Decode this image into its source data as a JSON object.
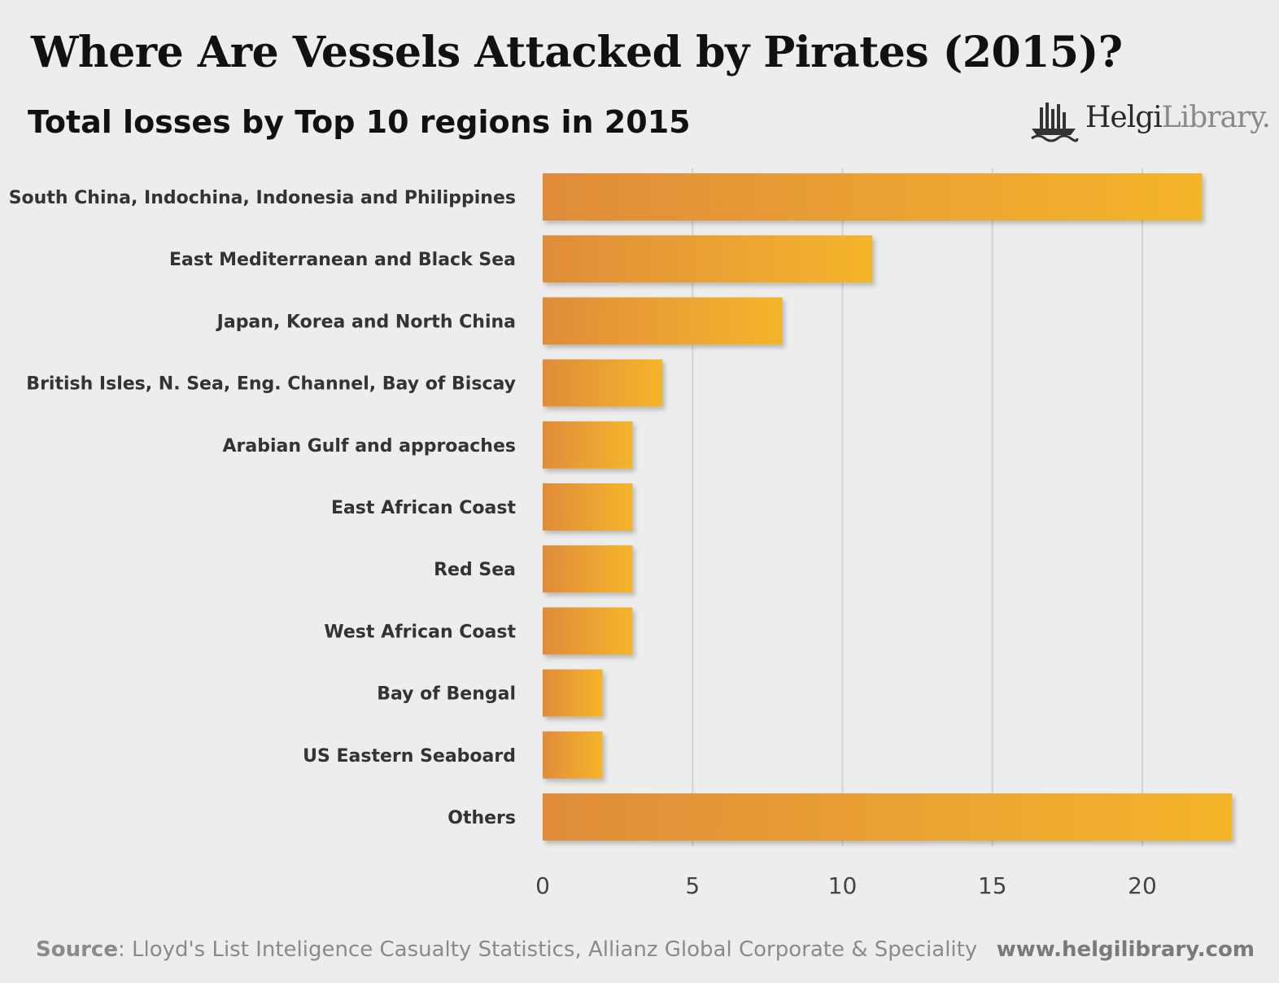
{
  "header": {
    "title": "Where Are Vessels Attacked by Pirates (2015)?",
    "subtitle": "Total losses by Top 10 regions in 2015"
  },
  "logo": {
    "brand_bold": "Helgi",
    "brand_light": "Library."
  },
  "footer": {
    "source_label": "Source",
    "source_text": ": Lloyd's List Inteligence Casualty Statistics, Allianz Global Corporate & Speciality",
    "website": "www.helgilibrary.com"
  },
  "colors": {
    "background": "#ededed",
    "bar_start": "#e08c3a",
    "bar_end": "#f5b52b",
    "grid": "#d4d4d4",
    "text": "#333333",
    "tick": "#444444"
  },
  "chart_data": {
    "type": "bar",
    "orientation": "horizontal",
    "title": "Where Are Vessels Attacked by Pirates (2015)?",
    "subtitle": "Total losses by Top 10 regions in 2015",
    "categories": [
      "South China, Indochina, Indonesia and Philippines",
      "East Mediterranean and Black Sea",
      "Japan, Korea and North China",
      "British Isles, N. Sea, Eng. Channel, Bay of Biscay",
      "Arabian Gulf and approaches",
      "East African Coast",
      "Red Sea",
      "West African Coast",
      "Bay of Bengal",
      "US Eastern Seaboard",
      "Others"
    ],
    "values": [
      22,
      11,
      8,
      4,
      3,
      3,
      3,
      3,
      2,
      2,
      23
    ],
    "xlim": [
      0,
      23
    ],
    "xticks": [
      0,
      5,
      10,
      15,
      20
    ],
    "xlabel": "",
    "ylabel": "",
    "grid": true
  }
}
